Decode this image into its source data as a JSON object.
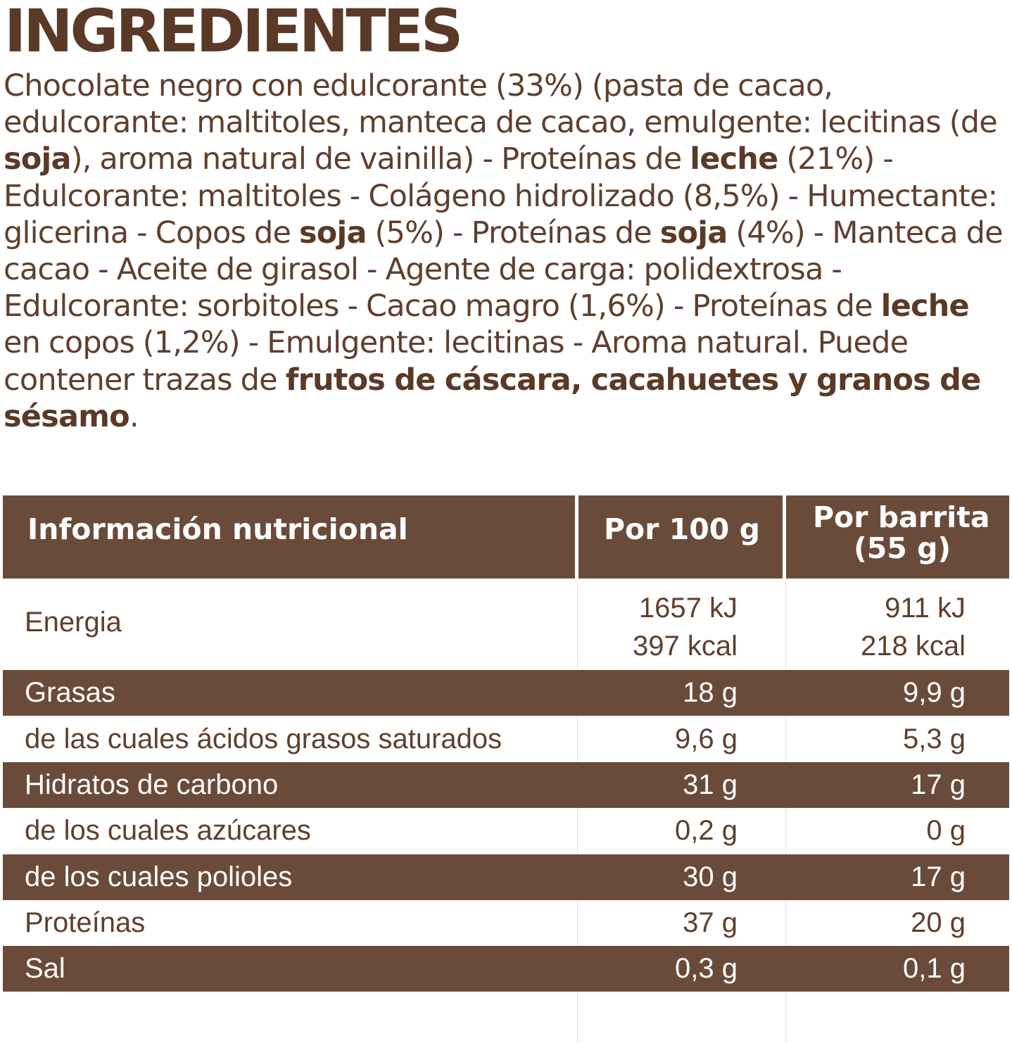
{
  "title": "INGREDIENTES",
  "ingredients": [
    {
      "text": "Chocolate negro con edulcorante (33%) (pasta de cacao, edulcorante: maltitoles, manteca de cacao, emulgente: lecitinas (de ",
      "bold": false
    },
    {
      "text": "soja",
      "bold": true
    },
    {
      "text": "), aroma natural de vainilla) - Proteínas de ",
      "bold": false
    },
    {
      "text": "leche",
      "bold": true
    },
    {
      "text": " (21%) - Edulcorante: maltitoles - Colágeno hidrolizado (8,5%) - Humectante: glicerina - Copos de ",
      "bold": false
    },
    {
      "text": "soja",
      "bold": true
    },
    {
      "text": " (5%) - Proteínas de ",
      "bold": false
    },
    {
      "text": "soja",
      "bold": true
    },
    {
      "text": " (4%) - Manteca de cacao - Aceite de girasol - Agente de carga: polidextrosa - Edulcorante: sorbitoles - Cacao magro (1,6%) - Proteínas de ",
      "bold": false
    },
    {
      "text": "leche",
      "bold": true
    },
    {
      "text": " en copos (1,2%) - Emulgente: lecitinas - Aroma natural. Puede contener trazas de ",
      "bold": false
    },
    {
      "text": "frutos de cáscara, cacahuetes y granos de sésamo",
      "bold": true
    },
    {
      "text": ".",
      "bold": false
    }
  ],
  "table": {
    "header": {
      "label": "Información nutricional",
      "col1": "Por 100 g",
      "col2_line1": "Por barrita",
      "col2_line2": "(55 g)"
    },
    "energy": {
      "label": "Energia",
      "col1_kj": "1657 kJ",
      "col1_kcal": "397 kcal",
      "col2_kj": "911 kJ",
      "col2_kcal": "218 kcal"
    },
    "rows": [
      {
        "label": "Grasas",
        "col1": "18 g",
        "col2": "9,9 g"
      },
      {
        "label": "de las cuales ácidos grasos saturados",
        "col1": "9,6 g",
        "col2": "5,3 g"
      },
      {
        "label": "Hidratos de carbono",
        "col1": "31 g",
        "col2": "17 g"
      },
      {
        "label": "de los cuales azúcares",
        "col1": "0,2 g",
        "col2": "0 g"
      },
      {
        "label": "de los cuales polioles",
        "col1": "30 g",
        "col2": "17 g"
      },
      {
        "label": "Proteínas",
        "col1": "37 g",
        "col2": "20 g"
      },
      {
        "label": "Sal",
        "col1": "0,3 g",
        "col2": "0,1 g"
      }
    ]
  },
  "colors": {
    "brown": "#6a4b3a",
    "title_brown": "#5a3a26",
    "text_brown": "#5f3f2c"
  }
}
